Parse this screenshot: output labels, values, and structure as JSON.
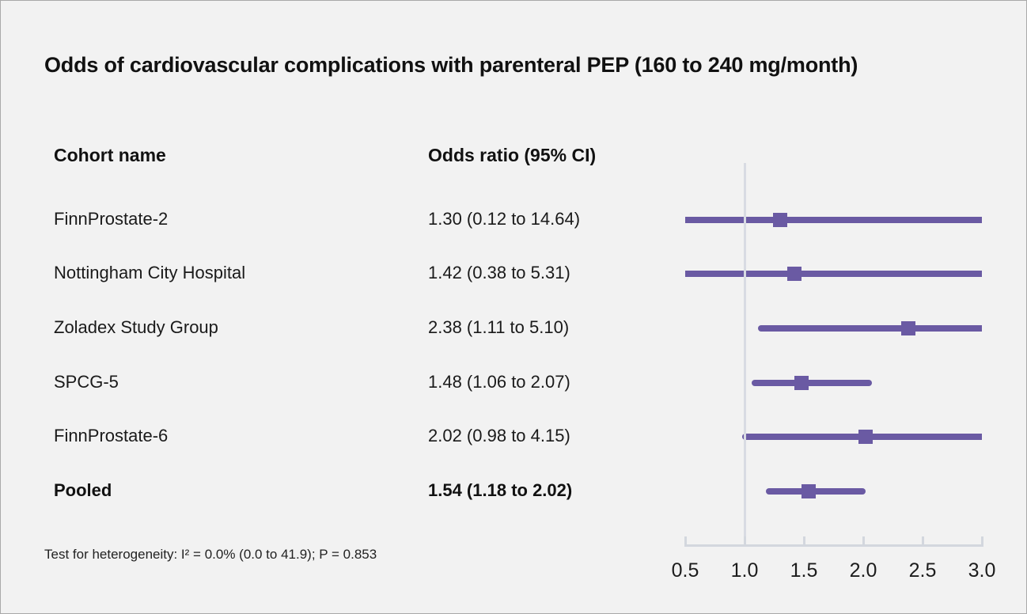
{
  "chart_data": {
    "type": "forest",
    "title": "Odds of cardiovascular complications with parenteral PEP (160 to 240 mg/month)",
    "columns": {
      "cohort": "Cohort name",
      "odds_ratio": "Odds ratio (95% CI)"
    },
    "rows": [
      {
        "cohort": "FinnProstate-2",
        "or": 1.3,
        "ci_low": 0.12,
        "ci_high": 14.64,
        "label": "1.30 (0.12 to 14.64)",
        "bold": false
      },
      {
        "cohort": "Nottingham City Hospital",
        "or": 1.42,
        "ci_low": 0.38,
        "ci_high": 5.31,
        "label": "1.42 (0.38 to 5.31)",
        "bold": false
      },
      {
        "cohort": "Zoladex Study Group",
        "or": 2.38,
        "ci_low": 1.11,
        "ci_high": 5.1,
        "label": "2.38 (1.11 to 5.10)",
        "bold": false
      },
      {
        "cohort": "SPCG-5",
        "or": 1.48,
        "ci_low": 1.06,
        "ci_high": 2.07,
        "label": "1.48 (1.06 to 2.07)",
        "bold": false
      },
      {
        "cohort": "FinnProstate-6",
        "or": 2.02,
        "ci_low": 0.98,
        "ci_high": 4.15,
        "label": "2.02 (0.98 to 4.15)",
        "bold": false
      },
      {
        "cohort": "Pooled",
        "or": 1.54,
        "ci_low": 1.18,
        "ci_high": 2.02,
        "label": "1.54 (1.18 to 2.02)",
        "bold": true
      }
    ],
    "axis": {
      "range": [
        0.5,
        3.0
      ],
      "ticks": [
        "0.5",
        "1.0",
        "1.5",
        "2.0",
        "2.5",
        "3.0"
      ],
      "reference_line": 1.0
    },
    "footnote": "Test for heterogeneity: I² = 0.0% (0.0 to 41.9); P = 0.853",
    "legend_position": "none",
    "grid": false,
    "colors": {
      "marker": "#6a5aa3",
      "ci_line": "#6a5aa3",
      "reference_line": "#d8dbe3",
      "axis": "#d3d7de",
      "text": "#1a1a1a",
      "background": "#f2f2f2"
    }
  }
}
